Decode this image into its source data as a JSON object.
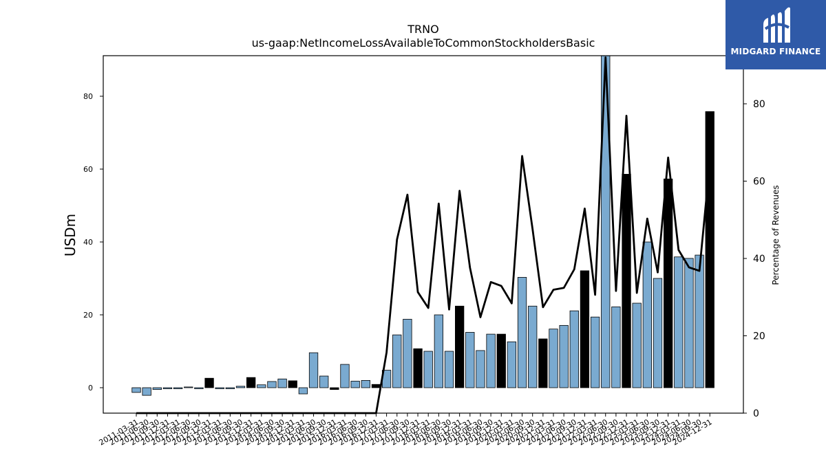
{
  "brand": {
    "name": "MIDGARD FINANCE",
    "colors": {
      "logo_bg": "#2f5aa8",
      "bar_light": "#7aaad0",
      "bar_dark": "#000000",
      "line": "#000000"
    }
  },
  "chart_data": {
    "type": "bar",
    "title": "TRNO",
    "subtitle": "us-gaap:NetIncomeLossAvailableToCommonStockholdersBasic",
    "ylabel": "USDm",
    "y2label": "Percentage of Revenues",
    "ylim": [
      -7,
      91.5
    ],
    "y2lim": [
      0,
      92
    ],
    "yticks": [
      0,
      20,
      40,
      60,
      80
    ],
    "y2ticks": [
      0,
      20,
      40,
      60,
      80
    ],
    "grid": false,
    "categories": [
      "2011-03-31",
      "2011-06-30",
      "2011-09-30",
      "2011-12-31",
      "2012-03-31",
      "2012-06-30",
      "2012-09-30",
      "2012-12-31",
      "2013-03-31",
      "2013-06-30",
      "2013-09-30",
      "2013-12-31",
      "2014-03-31",
      "2014-06-30",
      "2014-09-30",
      "2014-12-31",
      "2015-03-31",
      "2015-06-30",
      "2015-09-30",
      "2015-12-31",
      "2016-03-31",
      "2016-06-30",
      "2016-09-30",
      "2016-12-31",
      "2017-03-31",
      "2017-06-30",
      "2017-09-30",
      "2017-12-31",
      "2018-03-31",
      "2018-06-30",
      "2018-09-30",
      "2018-12-31",
      "2019-03-31",
      "2019-06-30",
      "2019-09-30",
      "2019-12-31",
      "2020-03-31",
      "2020-06-30",
      "2020-09-30",
      "2020-12-31",
      "2021-03-31",
      "2021-06-30",
      "2021-09-30",
      "2021-12-31",
      "2022-03-31",
      "2022-06-30",
      "2022-09-30",
      "2022-12-31",
      "2023-03-31",
      "2023-06-30",
      "2023-09-30",
      "2023-12-31",
      "2024-03-31",
      "2024-06-30",
      "2024-09-30",
      "2024-12-31"
    ],
    "series": [
      {
        "values": [
          -1.3,
          -2.1,
          -0.5,
          -0.3,
          -0.3,
          0.2,
          -0.3,
          2.6,
          -0.3,
          -0.3,
          0.4,
          2.8,
          0.8,
          1.7,
          2.4,
          1.9,
          -1.7,
          9.6,
          3.2,
          -0.5,
          6.4,
          1.8,
          2.0,
          0.9,
          4.8,
          14.5,
          18.8,
          10.7,
          10.0,
          20.0,
          10.0,
          22.4,
          15.2,
          10.2,
          14.7,
          14.7,
          12.6,
          30.3,
          22.4,
          13.4,
          16.1,
          17.1,
          21.1,
          32.1,
          19.4,
          91.5,
          22.2,
          58.6,
          23.2,
          40.0,
          30.0,
          57.3,
          35.9,
          35.5,
          36.4,
          75.8
        ],
        "highlight": [
          false,
          false,
          false,
          false,
          false,
          false,
          false,
          true,
          false,
          false,
          false,
          true,
          false,
          false,
          false,
          true,
          false,
          false,
          false,
          true,
          false,
          false,
          false,
          true,
          false,
          false,
          false,
          true,
          false,
          false,
          false,
          true,
          false,
          false,
          false,
          true,
          false,
          false,
          false,
          true,
          false,
          false,
          false,
          true,
          false,
          false,
          false,
          true,
          false,
          false,
          false,
          true,
          false,
          false,
          false,
          true
        ]
      },
      {
        "values": [
          0,
          0,
          0,
          0,
          0,
          0,
          0,
          0,
          0,
          0,
          0,
          0,
          0,
          0,
          0,
          0,
          0,
          0,
          0,
          0,
          0,
          0,
          0,
          0,
          15.7,
          44.9,
          56.5,
          31.3,
          27.2,
          54.2,
          26.8,
          57.5,
          37.6,
          24.8,
          33.9,
          32.9,
          28.4,
          66.5,
          47.6,
          27.4,
          31.9,
          32.4,
          37.2,
          52.9,
          30.6,
          92,
          31.6,
          76.9,
          31.1,
          50.3,
          36.4,
          66.1,
          42.2,
          37.7,
          36.8,
          64.9
        ]
      }
    ]
  }
}
